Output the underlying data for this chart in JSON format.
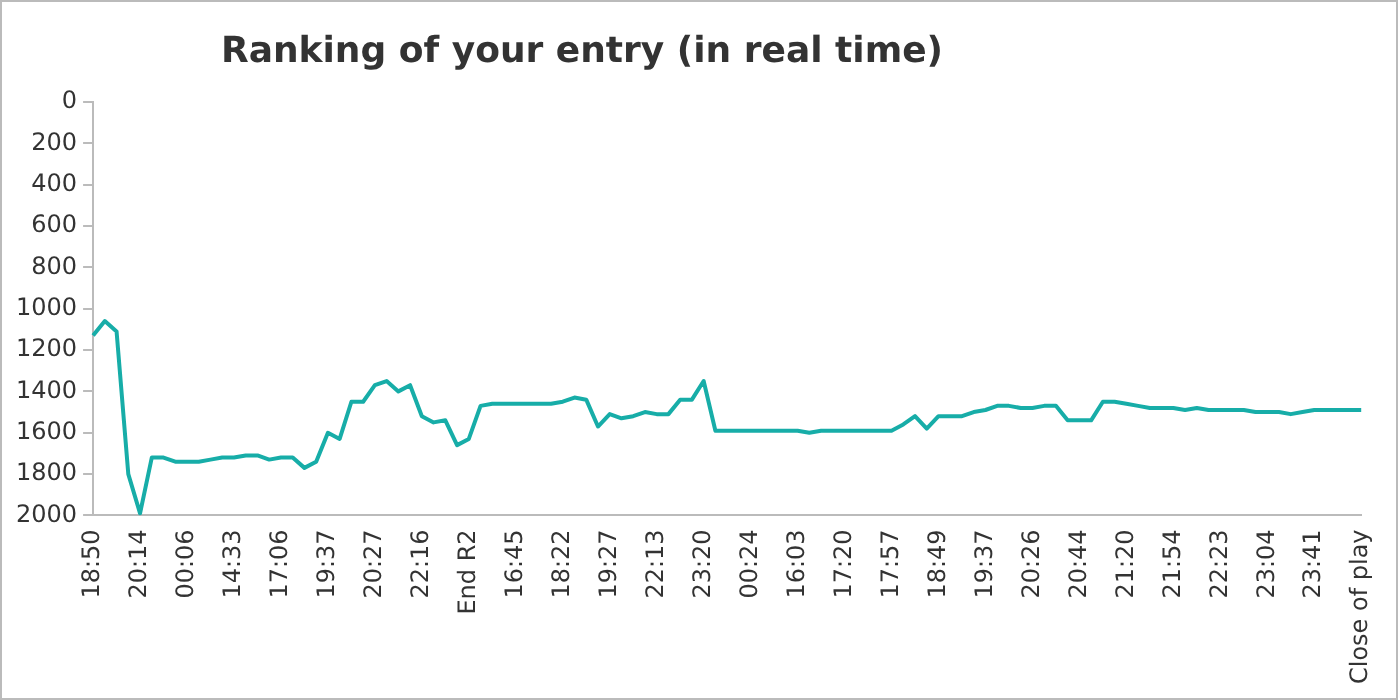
{
  "chart_data": {
    "type": "line",
    "title": "Ranking of your entry (in real time)",
    "categories": [
      "18:50",
      null,
      null,
      null,
      "20:14",
      null,
      null,
      null,
      "00:06",
      null,
      null,
      null,
      "14:33",
      null,
      null,
      null,
      "17:06",
      null,
      null,
      null,
      "19:37",
      null,
      null,
      null,
      "20:27",
      null,
      null,
      null,
      "22:16",
      null,
      null,
      null,
      "End R2",
      null,
      null,
      null,
      "16:45",
      null,
      null,
      null,
      "18:22",
      null,
      null,
      null,
      "19:27",
      null,
      null,
      null,
      "22:13",
      null,
      null,
      null,
      "23:20",
      null,
      null,
      null,
      "00:24",
      null,
      null,
      null,
      "16:03",
      null,
      null,
      null,
      "17:20",
      null,
      null,
      null,
      "17:57",
      null,
      null,
      null,
      "18:49",
      null,
      null,
      null,
      "19:37",
      null,
      null,
      null,
      "20:26",
      null,
      null,
      null,
      "20:44",
      null,
      null,
      null,
      "21:20",
      null,
      null,
      null,
      "21:54",
      null,
      null,
      null,
      "22:23",
      null,
      null,
      null,
      "23:04",
      null,
      null,
      null,
      "23:41",
      null,
      null,
      null,
      "Close of play"
    ],
    "series": [
      {
        "color": "#17ada8",
        "values": [
          1130,
          1060,
          1110,
          1800,
          1990,
          1720,
          1720,
          1740,
          1740,
          1740,
          1730,
          1720,
          1720,
          1710,
          1710,
          1730,
          1720,
          1720,
          1770,
          1740,
          1600,
          1630,
          1450,
          1450,
          1370,
          1350,
          1400,
          1370,
          1520,
          1550,
          1540,
          1660,
          1630,
          1470,
          1460,
          1460,
          1460,
          1460,
          1460,
          1460,
          1450,
          1430,
          1440,
          1570,
          1510,
          1530,
          1520,
          1500,
          1510,
          1510,
          1440,
          1440,
          1350,
          1590,
          1590,
          1590,
          1590,
          1590,
          1590,
          1590,
          1590,
          1600,
          1590,
          1590,
          1590,
          1590,
          1590,
          1590,
          1590,
          1560,
          1520,
          1580,
          1520,
          1520,
          1520,
          1500,
          1490,
          1470,
          1470,
          1480,
          1480,
          1470,
          1470,
          1540,
          1540,
          1540,
          1450,
          1450,
          1460,
          1470,
          1480,
          1480,
          1480,
          1490,
          1480,
          1490,
          1490,
          1490,
          1490,
          1500,
          1500,
          1500,
          1510,
          1500,
          1490,
          1490,
          1490,
          1490,
          1490
        ]
      }
    ],
    "ylim": [
      2000,
      0
    ],
    "yticks": [
      0,
      200,
      400,
      600,
      800,
      1000,
      1200,
      1400,
      1600,
      1800,
      2000
    ],
    "grid": false,
    "legend": false,
    "marker": "none",
    "line_style": "solid"
  }
}
